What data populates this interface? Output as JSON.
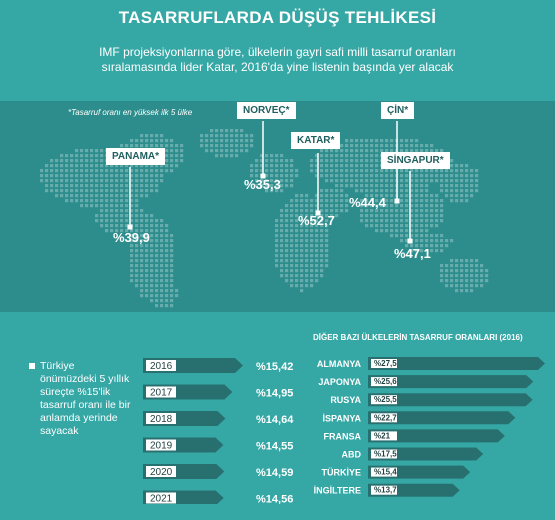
{
  "title": "TASARRUFLARDA DÜŞÜŞ TEHLİKESİ",
  "subtitle": "IMF projeksiyonlarına göre, ülkelerin gayri safi milli tasarruf oranları sıralamasında lider Katar, 2016'da yine listenin başında yer alacak",
  "map": {
    "note": "*Tasarruf oranı en yüksek ilk 5 ülke",
    "countries": [
      {
        "label": "PANAMA*",
        "value": "%39,9"
      },
      {
        "label": "NORVEÇ*",
        "value": "%35,3"
      },
      {
        "label": "KATAR*",
        "value": "%52,7"
      },
      {
        "label": "ÇİN*",
        "value": "%44,4"
      },
      {
        "label": "SİNGAPUR*",
        "value": "%47,1"
      }
    ]
  },
  "turkey_note": "Türkiye önümüzdeki 5 yıllık süreçte %15'lik tasarruf oranı ile bir anlamda yerinde sayacak",
  "colors": {
    "background": "#35a7a5",
    "map_band": "#2c8d8c",
    "bar": "#27706f",
    "label_box": "#ffffff"
  },
  "chart_data": [
    {
      "type": "bar",
      "orientation": "horizontal",
      "categories": [
        "2016",
        "2017",
        "2018",
        "2019",
        "2020",
        "2021"
      ],
      "values": [
        15.42,
        14.95,
        14.64,
        14.55,
        14.59,
        14.56
      ],
      "value_labels": [
        "%15,42",
        "%14,95",
        "%14,64",
        "%14,55",
        "%14,59",
        "%14,56"
      ],
      "title": ""
    },
    {
      "type": "bar",
      "orientation": "horizontal",
      "title": "DİĞER BAZI ÜLKELERİN TASARRUF ORANLARI (2016)",
      "categories": [
        "ALMANYA",
        "JAPONYA",
        "RUSYA",
        "İSPANYA",
        "FRANSA",
        "ABD",
        "TÜRKİYE",
        "İNGİLTERE"
      ],
      "values": [
        27.5,
        25.6,
        25.5,
        22.7,
        21,
        17.5,
        15.4,
        13.7
      ],
      "value_labels": [
        "%27,5",
        "%25,6",
        "%25,5",
        "%22,7",
        "%21",
        "%17,5",
        "%15,4",
        "%13,7"
      ]
    }
  ]
}
